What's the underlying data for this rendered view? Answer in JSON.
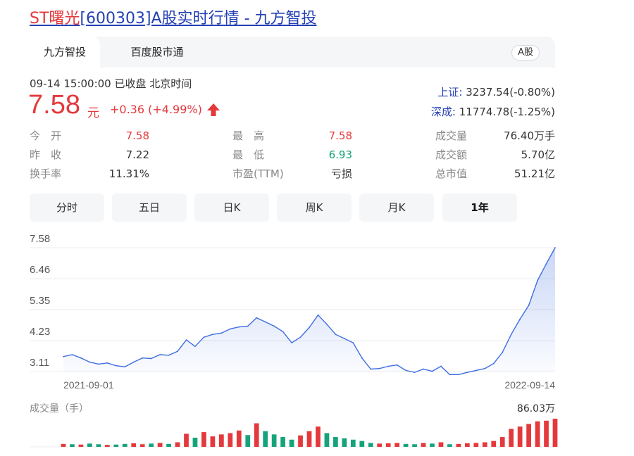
{
  "page": {
    "title_highlight": "ST曙光",
    "title_rest": "[600303]A股实时行情 - 九方智投"
  },
  "tabs": {
    "active": "九方智投",
    "second": "百度股市通",
    "market_badge": "A股"
  },
  "quote": {
    "time_status": "09-14 15:00:00  已收盘  北京时间",
    "price": "7.58",
    "unit": "元",
    "change": "+0.36 (+4.99%)",
    "arrow_icon": "arrow-up-icon"
  },
  "indices": [
    {
      "name": "上证:",
      "value": "3237.54(-0.80%)"
    },
    {
      "name": "深成:",
      "value": "11774.78(-1.25%)"
    }
  ],
  "stats": {
    "col1": [
      {
        "label": "今　开",
        "value": "7.58",
        "tone": "red"
      },
      {
        "label": "昨　收",
        "value": "7.22",
        "tone": ""
      },
      {
        "label": "换手率",
        "value": "11.31%",
        "tone": ""
      }
    ],
    "col2": [
      {
        "label": "最　高",
        "value": "7.58",
        "tone": "red"
      },
      {
        "label": "最　低",
        "value": "6.93",
        "tone": "green"
      },
      {
        "label": "市盈(TTM)",
        "value": "亏损",
        "tone": ""
      }
    ],
    "col3": [
      {
        "label": "成交量",
        "value": "76.40万手",
        "tone": ""
      },
      {
        "label": "成交额",
        "value": "5.70亿",
        "tone": ""
      },
      {
        "label": "总市值",
        "value": "51.21亿",
        "tone": ""
      }
    ]
  },
  "periods": [
    {
      "label": "分时",
      "active": false
    },
    {
      "label": "五日",
      "active": false
    },
    {
      "label": "日K",
      "active": false
    },
    {
      "label": "周K",
      "active": false
    },
    {
      "label": "月K",
      "active": false
    },
    {
      "label": "1年",
      "active": true
    }
  ],
  "volume": {
    "label": "成交量（手）",
    "max": "86.03万"
  },
  "colors": {
    "up": "#e4393c",
    "down": "#16a37b",
    "line": "#3f6ee0",
    "link": "#2440b3"
  },
  "chart_data": {
    "type": "area",
    "xlabel": "",
    "ylabel": "",
    "y_ticks": [
      "7.58",
      "6.46",
      "5.35",
      "4.23",
      "3.11"
    ],
    "ylim": [
      3.11,
      7.58
    ],
    "x_start_label": "2021-09-01",
    "x_end_label": "2022-09-14",
    "grid": true,
    "price": [
      3.65,
      3.72,
      3.6,
      3.45,
      3.38,
      3.42,
      3.32,
      3.28,
      3.45,
      3.6,
      3.58,
      3.72,
      3.7,
      3.84,
      4.25,
      4.02,
      4.35,
      4.45,
      4.5,
      4.65,
      4.72,
      4.75,
      5.05,
      4.9,
      4.75,
      4.55,
      4.15,
      4.35,
      4.7,
      5.15,
      4.82,
      4.45,
      4.3,
      4.15,
      3.6,
      3.2,
      3.22,
      3.3,
      3.35,
      3.15,
      3.08,
      3.2,
      3.12,
      3.3,
      3.0,
      3.0,
      3.08,
      3.15,
      3.22,
      3.4,
      3.8,
      4.45,
      5.0,
      5.5,
      6.4,
      7.0,
      7.58
    ],
    "volume_max": 86.03,
    "volume": [
      9,
      8,
      7,
      10,
      8,
      6,
      7,
      9,
      11,
      8,
      10,
      12,
      9,
      14,
      40,
      28,
      45,
      32,
      38,
      42,
      50,
      36,
      72,
      48,
      38,
      30,
      22,
      35,
      48,
      62,
      42,
      30,
      26,
      22,
      18,
      12,
      10,
      11,
      12,
      9,
      8,
      12,
      10,
      14,
      8,
      9,
      11,
      12,
      14,
      18,
      30,
      55,
      62,
      70,
      78,
      80,
      86.03
    ],
    "volume_up": [
      true,
      false,
      true,
      false,
      false,
      true,
      false,
      false,
      true,
      true,
      false,
      true,
      false,
      true,
      true,
      false,
      true,
      true,
      true,
      true,
      true,
      false,
      true,
      false,
      false,
      false,
      false,
      true,
      true,
      true,
      false,
      false,
      false,
      false,
      false,
      false,
      true,
      true,
      true,
      false,
      false,
      true,
      false,
      true,
      false,
      true,
      true,
      true,
      true,
      true,
      true,
      true,
      true,
      true,
      true,
      true,
      true
    ]
  }
}
